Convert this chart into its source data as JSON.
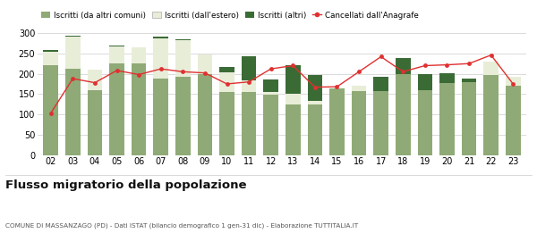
{
  "years": [
    "02",
    "03",
    "04",
    "05",
    "06",
    "07",
    "08",
    "09",
    "10",
    "11",
    "12",
    "13",
    "14",
    "15",
    "16",
    "17",
    "18",
    "19",
    "20",
    "21",
    "22",
    "23"
  ],
  "iscritti_comuni": [
    222,
    213,
    160,
    225,
    225,
    188,
    193,
    200,
    155,
    155,
    148,
    125,
    125,
    165,
    158,
    158,
    200,
    160,
    178,
    180,
    198,
    170
  ],
  "iscritti_estero": [
    33,
    78,
    50,
    42,
    40,
    100,
    90,
    48,
    48,
    28,
    8,
    25,
    8,
    0,
    12,
    0,
    0,
    0,
    0,
    0,
    32,
    22
  ],
  "iscritti_altri": [
    3,
    2,
    0,
    2,
    0,
    4,
    2,
    0,
    14,
    60,
    30,
    72,
    65,
    0,
    0,
    35,
    38,
    40,
    24,
    8,
    0,
    0
  ],
  "cancellati": [
    103,
    188,
    178,
    208,
    198,
    212,
    205,
    202,
    175,
    180,
    212,
    220,
    167,
    168,
    205,
    242,
    205,
    220,
    222,
    225,
    246,
    175
  ],
  "color_comuni": "#8faa76",
  "color_estero": "#e8edd8",
  "color_altri": "#3a6b35",
  "color_cancellati": "#e03030",
  "ylim": [
    0,
    320
  ],
  "yticks": [
    0,
    50,
    100,
    150,
    200,
    250,
    300
  ],
  "title": "Flusso migratorio della popolazione",
  "subtitle": "COMUNE DI MASSANZAGO (PD) - Dati ISTAT (bilancio demografico 1 gen-31 dic) - Elaborazione TUTTITALIA.IT",
  "legend_labels": [
    "Iscritti (da altri comuni)",
    "Iscritti (dall'estero)",
    "Iscritti (altri)",
    "Cancellati dall'Anagrafe"
  ],
  "background_color": "#ffffff",
  "grid_color": "#cccccc"
}
